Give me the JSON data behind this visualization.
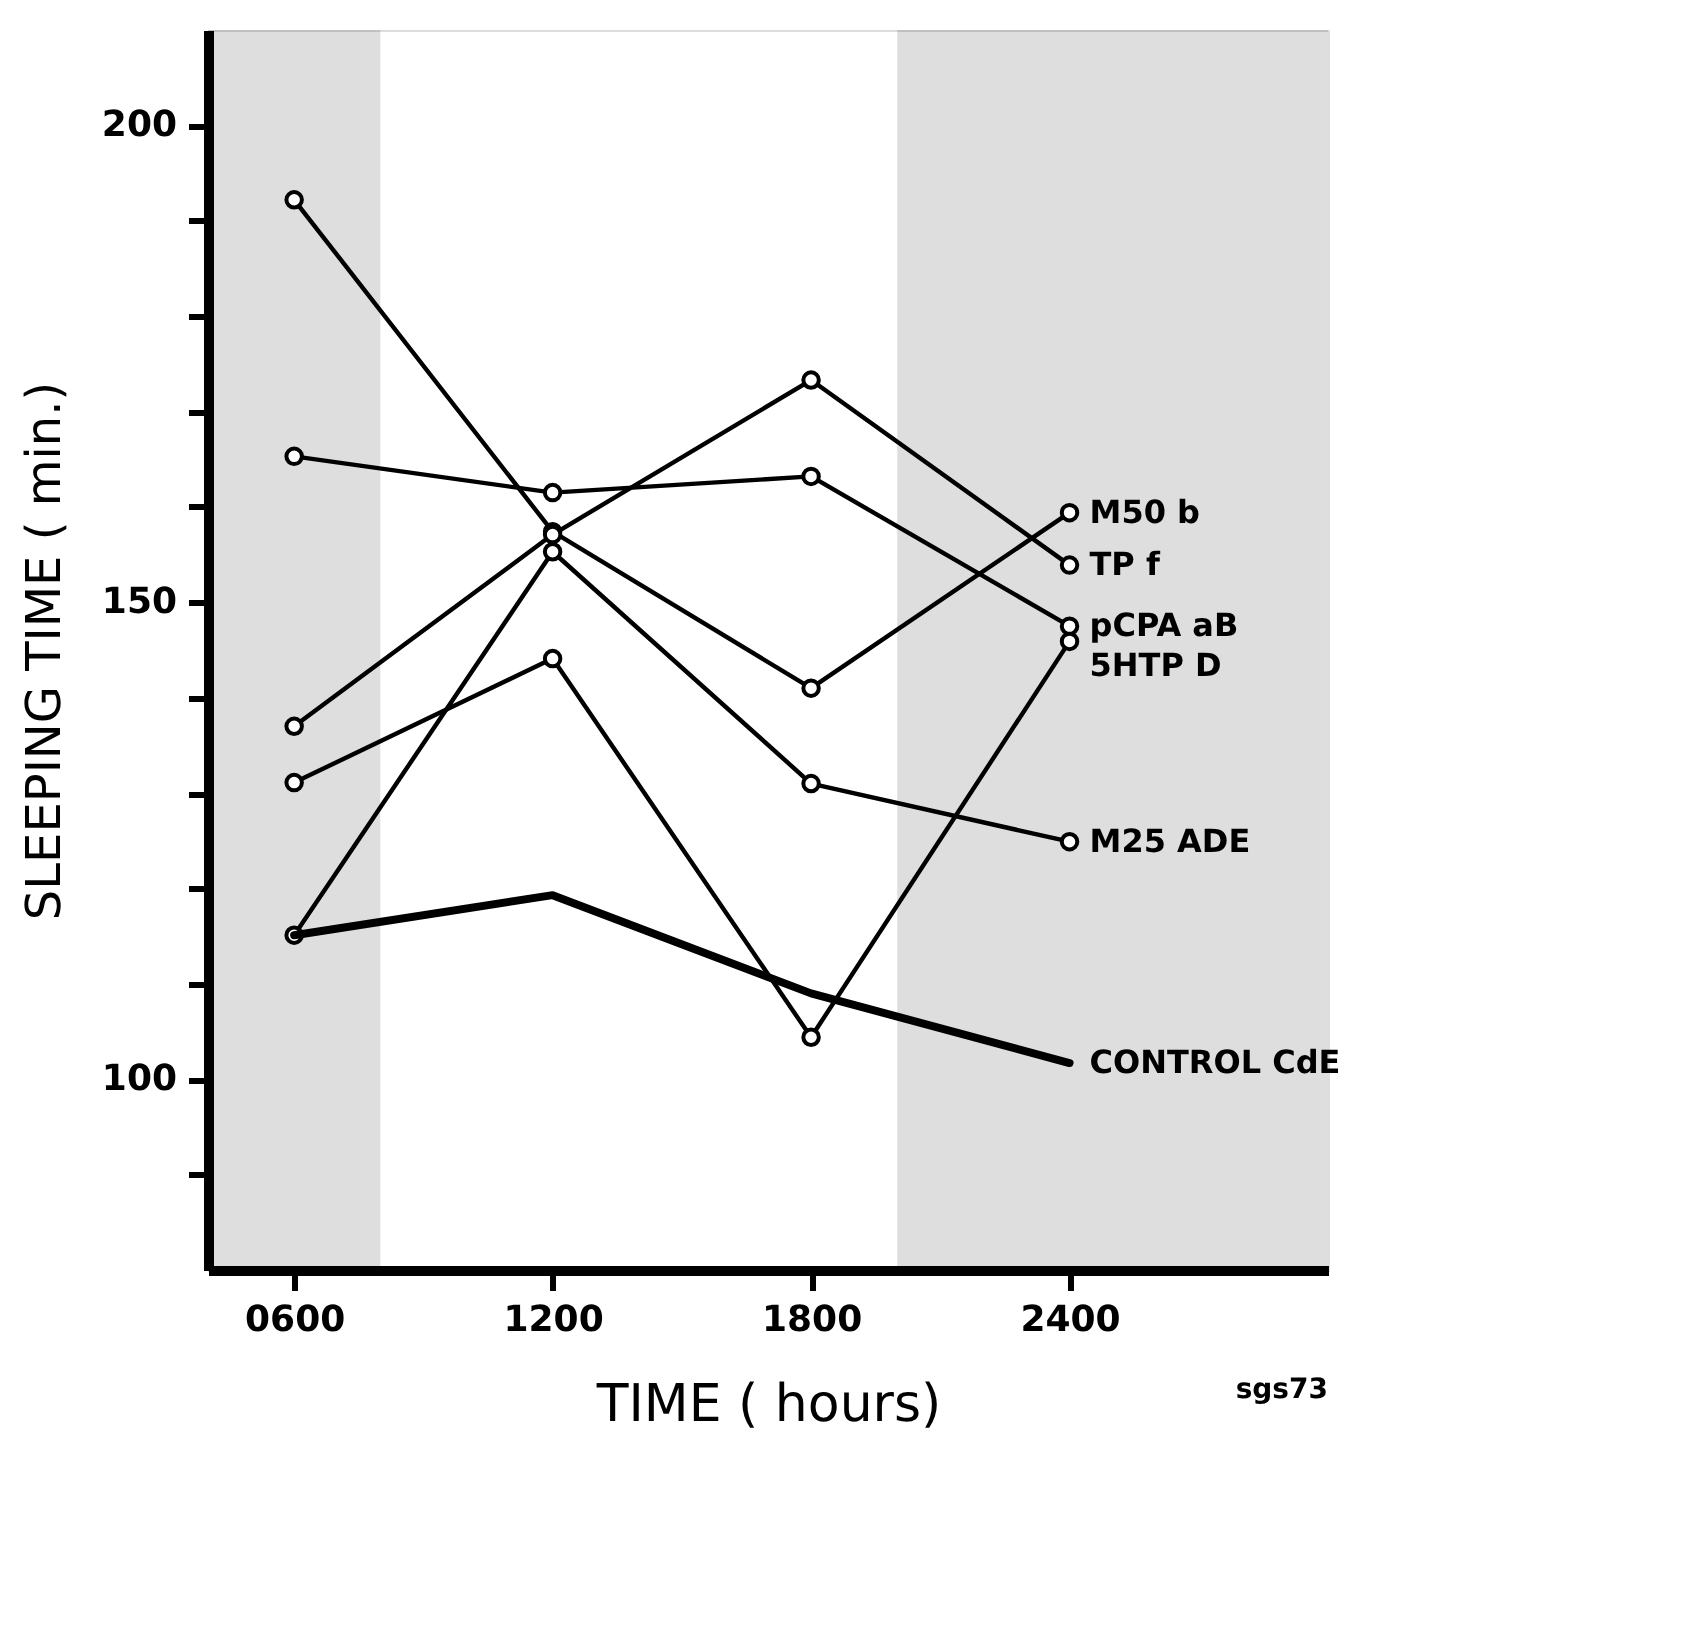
{
  "chart_data": {
    "type": "line",
    "xlabel": "TIME ( hours)",
    "ylabel": "SLEEPING TIME ( min.)",
    "x": [
      600,
      1200,
      1800,
      2400
    ],
    "series": [
      {
        "name": "M50 b",
        "color": "#000000",
        "marker": "circle",
        "values": [
          192.2,
          157.4,
          141.0,
          159.4
        ]
      },
      {
        "name": "TP f",
        "color": "#000000",
        "marker": "circle",
        "values": [
          137.0,
          157.1,
          173.3,
          153.9
        ]
      },
      {
        "name": "pCPA aB",
        "color": "#000000",
        "marker": "circle",
        "values": [
          165.3,
          161.5,
          163.2,
          147.5
        ]
      },
      {
        "name": "5HTP D",
        "color": "#000000",
        "marker": "circle",
        "values": [
          131.1,
          144.1,
          104.4,
          145.9
        ]
      },
      {
        "name": "M25 ADE",
        "color": "#000000",
        "marker": "circle",
        "values": [
          115.1,
          155.3,
          131.0,
          124.9
        ]
      },
      {
        "name": "CONTROL CdE",
        "color": "#000000",
        "marker": "none",
        "values": [
          115.1,
          119.3,
          109.0,
          101.7
        ]
      }
    ],
    "xlim": [
      400,
      3000
    ],
    "xticks": [
      {
        "value": 600,
        "label": "0600"
      },
      1200,
      1800,
      2400
    ],
    "ylim": [
      80,
      210
    ],
    "yticks": [
      {
        "value": 90,
        "label": null
      },
      100,
      {
        "value": 110,
        "label": null
      },
      {
        "value": 120,
        "label": null
      },
      {
        "value": 130,
        "label": null
      },
      {
        "value": 140,
        "label": null
      },
      150,
      {
        "value": 160,
        "label": null
      },
      {
        "value": 170,
        "label": null
      },
      {
        "value": 180,
        "label": null
      },
      {
        "value": 190,
        "label": null
      },
      200
    ],
    "bands": [
      {
        "axis": "x",
        "from": 400,
        "to": 800,
        "color": "#000000"
      },
      {
        "axis": "x",
        "from": 2000,
        "to": 3000,
        "color": "#000000"
      }
    ],
    "annotations": [
      "sgs73"
    ],
    "grid": false,
    "legend": false
  }
}
